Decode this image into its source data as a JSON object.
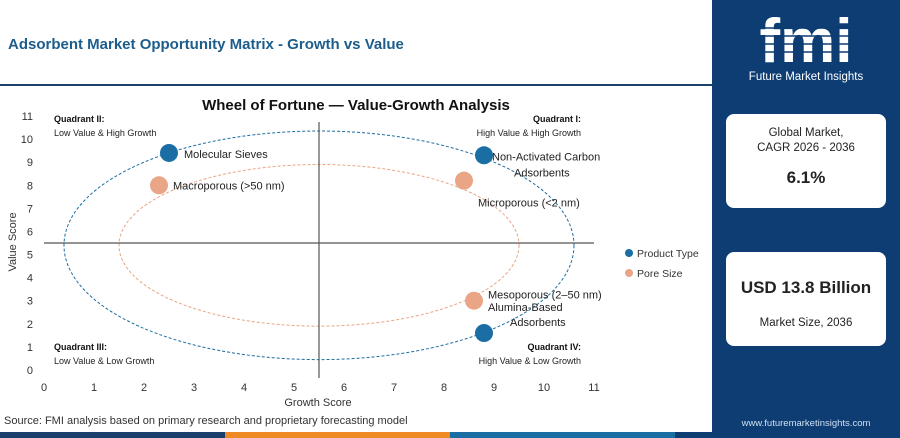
{
  "page": {
    "title": "Adsorbent Market Opportunity Matrix - Growth vs Value",
    "source": "Source: FMI analysis based on primary research and proprietary forecasting model"
  },
  "brand": {
    "logo_text": "fmi",
    "logo_tagline": "Future Market Insights",
    "website": "www.futuremarketinsights.com",
    "colors": {
      "navy": "#0d3d73",
      "product_type": "#1b6ea3",
      "pore_size": "#e9a585",
      "accent_orange": "#f08a24"
    }
  },
  "stats": [
    {
      "label_line1": "Global Market,",
      "label_line2": "CAGR 2026 - 2036",
      "value": "6.1%"
    },
    {
      "value": "USD 13.8 Billion",
      "label": "Market Size, 2036"
    }
  ],
  "chart_data": {
    "type": "scatter",
    "title": "Wheel of Fortune — Value-Growth Analysis",
    "xlabel": "Growth Score",
    "ylabel": "Value Score",
    "xlim": [
      0,
      11
    ],
    "ylim": [
      0,
      11
    ],
    "x_ticks": [
      "0",
      "1",
      "2",
      "3",
      "4",
      "5",
      "6",
      "7",
      "8",
      "9",
      "10",
      "11"
    ],
    "y_ticks": [
      "0",
      "1",
      "2",
      "3",
      "4",
      "5",
      "6",
      "7",
      "8",
      "9",
      "10",
      "11"
    ],
    "grid": false,
    "crosshair": {
      "x": 5.5,
      "y": 5.5
    },
    "legend_position": "right",
    "series": [
      {
        "name": "Product Type",
        "color": "#1b6ea3",
        "points": [
          {
            "label": "Molecular Sieves",
            "x": 2.5,
            "y": 9.4
          },
          {
            "label": "Non-Activated Carbon Adsorbents",
            "label_lines": [
              "Non-Activated Carbon",
              "Adsorbents"
            ],
            "x": 8.8,
            "y": 9.3
          },
          {
            "label": "Alumina-Based Adsorbents",
            "label_lines": [
              "Alumina-Based",
              "Adsorbents"
            ],
            "x": 8.8,
            "y": 1.6
          }
        ]
      },
      {
        "name": "Pore Size",
        "color": "#e9a585",
        "points": [
          {
            "label": "Macroporous (>50 nm)",
            "x": 2.3,
            "y": 8.0
          },
          {
            "label": "Microporous (<2 nm)",
            "x": 8.4,
            "y": 8.2
          },
          {
            "label": "Mesoporous (2–50 nm)",
            "x": 8.6,
            "y": 3.0
          }
        ]
      }
    ],
    "quadrants": [
      {
        "title": "Quadrant II:",
        "desc": "Low Value & High Growth"
      },
      {
        "title": "Quadrant I:",
        "desc": "High Value & High Growth"
      },
      {
        "title": "Quadrant III:",
        "desc": "Low Value & Low Growth"
      },
      {
        "title": "Quadrant IV:",
        "desc": "High Value & Low Growth"
      }
    ],
    "ellipses": [
      {
        "cx": 5.5,
        "cy": 5.4,
        "rx": 5.1,
        "ry": 4.95,
        "color": "#1b6ea3"
      },
      {
        "cx": 5.5,
        "cy": 5.4,
        "rx": 4.0,
        "ry": 3.5,
        "color": "#e9a585"
      }
    ]
  }
}
